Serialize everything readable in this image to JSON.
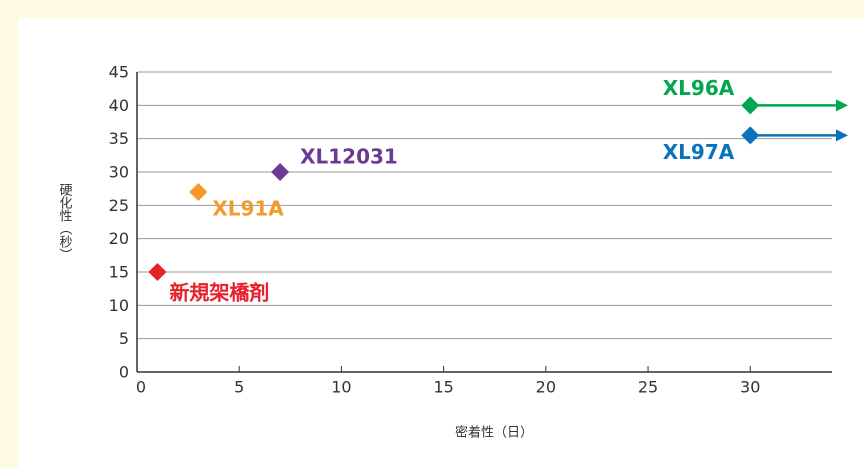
{
  "chart_data": {
    "type": "scatter",
    "x_label": "密着性（日）",
    "y_label": "硬化性（秒）",
    "xlim": [
      0,
      34
    ],
    "xticks": [
      0,
      5,
      10,
      15,
      20,
      25,
      30
    ],
    "ylim": [
      0,
      45
    ],
    "yticks": [
      0,
      5,
      10,
      15,
      20,
      25,
      30,
      35,
      40,
      45
    ],
    "grid": true,
    "series": [
      {
        "name": "新規架橋剤",
        "color": "#e8202a",
        "x": [
          1
        ],
        "values": [
          15
        ]
      },
      {
        "name": "XL91A",
        "color": "#f39a2b",
        "x": [
          3
        ],
        "values": [
          27
        ]
      },
      {
        "name": "XL12031",
        "color": "#6a3a95",
        "x": [
          7
        ],
        "values": [
          30
        ]
      },
      {
        "name": "XL96A",
        "color": "#00a650",
        "x": [
          30
        ],
        "values": [
          40
        ],
        "arrow": true
      },
      {
        "name": "XL97A",
        "color": "#0a72ba",
        "x": [
          30
        ],
        "values": [
          35.5
        ],
        "arrow": true
      }
    ]
  }
}
